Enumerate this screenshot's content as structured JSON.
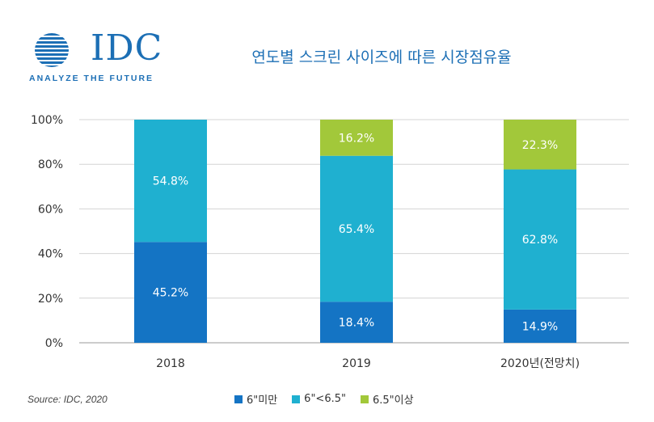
{
  "logo": {
    "text": "IDC",
    "tagline": "ANALYZE THE FUTURE"
  },
  "source": "Source: IDC, 2020",
  "chart_data": {
    "type": "bar",
    "stacked": true,
    "title": "연도별 스크린 사이즈에 따른 시장점유율",
    "categories": [
      "2018",
      "2019",
      "2020년(전망치)"
    ],
    "series": [
      {
        "name": "6\"미만",
        "values": [
          45.2,
          18.4,
          14.9
        ],
        "labels": [
          "45.2%",
          "18.4%",
          "14.9%"
        ],
        "color": "#1474c4"
      },
      {
        "name": "6\"<6.5\"",
        "values": [
          54.8,
          65.4,
          62.8
        ],
        "labels": [
          "54.8%",
          "65.4%",
          "62.8%"
        ],
        "color": "#1fb0d0"
      },
      {
        "name": "6.5\"이상",
        "values": [
          0,
          16.2,
          22.3
        ],
        "labels": [
          "",
          "16.2%",
          "22.3%"
        ],
        "color": "#a2c83a"
      }
    ],
    "yticks": [
      "0%",
      "20%",
      "40%",
      "60%",
      "80%",
      "100%"
    ],
    "ylim": [
      0,
      100
    ],
    "grid": true,
    "legend": "bottom"
  }
}
